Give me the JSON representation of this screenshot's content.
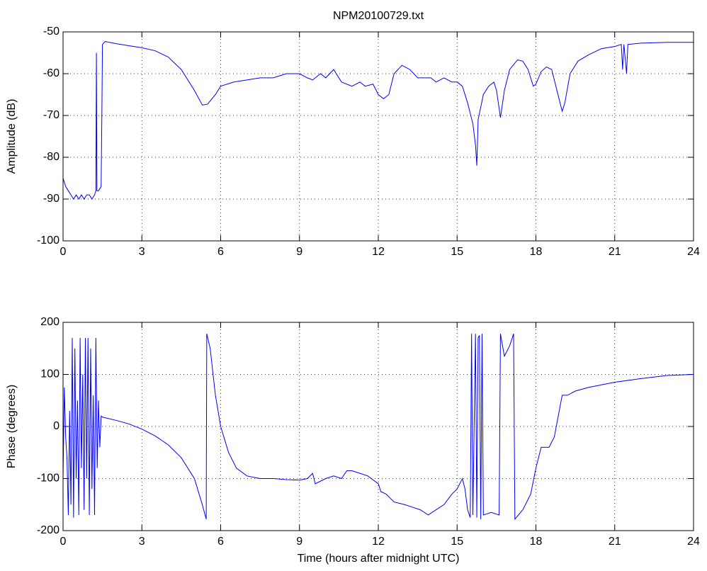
{
  "chart_data": [
    {
      "type": "line",
      "title": "NPM20100729.txt",
      "y_label": "Amplitude (dB)",
      "color": "#0000ff",
      "grid": true,
      "xlim": [
        0,
        24
      ],
      "xticks": [
        0,
        3,
        6,
        9,
        12,
        15,
        18,
        21,
        24
      ],
      "ylim": [
        -100,
        -50
      ],
      "yticks": [
        -100,
        -90,
        -80,
        -70,
        -60,
        -50
      ],
      "x": [
        0,
        0.1,
        0.2,
        0.3,
        0.4,
        0.5,
        0.6,
        0.7,
        0.8,
        0.9,
        1.0,
        1.1,
        1.2,
        1.25,
        1.27,
        1.29,
        1.35,
        1.45,
        1.48,
        1.5,
        1.6,
        2,
        2.5,
        3,
        3.5,
        4,
        4.5,
        5,
        5.3,
        5.5,
        5.8,
        6,
        6.5,
        7,
        7.5,
        8,
        8.5,
        9,
        9.3,
        9.5,
        9.8,
        10,
        10.3,
        10.6,
        11,
        11.3,
        11.5,
        11.8,
        12,
        12.2,
        12.4,
        12.6,
        12.9,
        13.2,
        13.5,
        13.8,
        14,
        14.2,
        14.5,
        14.8,
        15,
        15.2,
        15.4,
        15.6,
        15.7,
        15.75,
        15.8,
        16,
        16.2,
        16.4,
        16.5,
        16.65,
        16.8,
        17,
        17.3,
        17.5,
        17.7,
        17.9,
        18,
        18.2,
        18.4,
        18.6,
        18.8,
        19,
        19.1,
        19.3,
        19.6,
        20,
        20.5,
        21,
        21.25,
        21.3,
        21.35,
        21.45,
        21.5,
        22,
        23,
        24
      ],
      "values": [
        -85,
        -87,
        -88,
        -89,
        -90,
        -89,
        -90,
        -89,
        -90,
        -89,
        -89,
        -90,
        -89,
        -88,
        -55,
        -88,
        -88,
        -87,
        -68,
        -53,
        -52.3,
        -52.8,
        -53.3,
        -53.8,
        -54.5,
        -56,
        -59,
        -64,
        -67.5,
        -67.3,
        -65,
        -63,
        -62,
        -61.5,
        -61,
        -61,
        -60,
        -60,
        -61,
        -61.5,
        -60,
        -61,
        -59,
        -62,
        -63,
        -62,
        -63,
        -62.5,
        -65,
        -66,
        -65,
        -60,
        -58,
        -59,
        -61,
        -61,
        -61,
        -62,
        -61,
        -62,
        -62,
        -63,
        -67,
        -72,
        -77,
        -82,
        -71,
        -65,
        -63,
        -62,
        -64,
        -70.5,
        -64,
        -59,
        -56.7,
        -57,
        -59,
        -63,
        -62.5,
        -59.5,
        -58.4,
        -59,
        -64,
        -69,
        -67,
        -60,
        -57,
        -55.5,
        -54,
        -53.5,
        -53,
        -59,
        -53,
        -60,
        -53,
        -52.7,
        -52.5,
        -52.5
      ]
    },
    {
      "type": "line",
      "x_label": "Time (hours after midnight UTC)",
      "y_label": "Phase (degrees)",
      "color": "#0000ff",
      "grid": true,
      "xlim": [
        0,
        24
      ],
      "xticks": [
        0,
        3,
        6,
        9,
        12,
        15,
        18,
        21,
        24
      ],
      "ylim": [
        -200,
        200
      ],
      "yticks": [
        -200,
        -100,
        0,
        100,
        200
      ],
      "x": [
        0,
        0.05,
        0.1,
        0.15,
        0.2,
        0.25,
        0.3,
        0.35,
        0.4,
        0.45,
        0.5,
        0.55,
        0.6,
        0.65,
        0.7,
        0.75,
        0.8,
        0.85,
        0.9,
        0.95,
        1.0,
        1.05,
        1.1,
        1.15,
        1.2,
        1.25,
        1.3,
        1.35,
        1.4,
        1.45,
        1.5,
        2,
        2.5,
        3,
        3.5,
        4,
        4.5,
        5,
        5.3,
        5.45,
        5.47,
        5.6,
        5.8,
        6,
        6.3,
        6.6,
        7,
        7.5,
        8,
        8.5,
        9,
        9.3,
        9.5,
        9.6,
        10,
        10.3,
        10.6,
        10.8,
        11,
        11.3,
        11.6,
        12,
        12.1,
        12.3,
        12.6,
        13,
        13.3,
        13.6,
        13.9,
        14.2,
        14.5,
        14.8,
        15,
        15.2,
        15.3,
        15.4,
        15.5,
        15.55,
        15.6,
        15.7,
        15.75,
        15.8,
        15.85,
        15.9,
        15.95,
        16,
        16.3,
        16.6,
        16.65,
        16.8,
        17,
        17.15,
        17.2,
        17.5,
        17.8,
        18,
        18.2,
        18.5,
        18.7,
        19,
        19.2,
        19.5,
        20,
        21,
        22,
        23,
        24
      ],
      "values": [
        -100,
        75,
        -20,
        -60,
        -170,
        30,
        -150,
        170,
        -175,
        150,
        -100,
        50,
        -170,
        170,
        -80,
        100,
        -160,
        170,
        -100,
        170,
        -170,
        150,
        -120,
        60,
        -170,
        170,
        -80,
        50,
        -40,
        20,
        18,
        12,
        5,
        -5,
        -18,
        -35,
        -60,
        -100,
        -150,
        -178,
        178,
        150,
        60,
        0,
        -50,
        -80,
        -95,
        -100,
        -100,
        -102,
        -103,
        -100,
        -90,
        -110,
        -100,
        -95,
        -100,
        -85,
        -85,
        -90,
        -95,
        -110,
        -125,
        -130,
        -145,
        -150,
        -155,
        -160,
        -170,
        -160,
        -150,
        -130,
        -120,
        -100,
        -120,
        -160,
        -175,
        178,
        -170,
        178,
        -175,
        170,
        175,
        -178,
        178,
        -170,
        -165,
        -170,
        178,
        135,
        155,
        178,
        -178,
        -160,
        -130,
        -80,
        -40,
        -40,
        -20,
        60,
        60,
        68,
        75,
        85,
        92,
        98,
        100
      ]
    }
  ]
}
